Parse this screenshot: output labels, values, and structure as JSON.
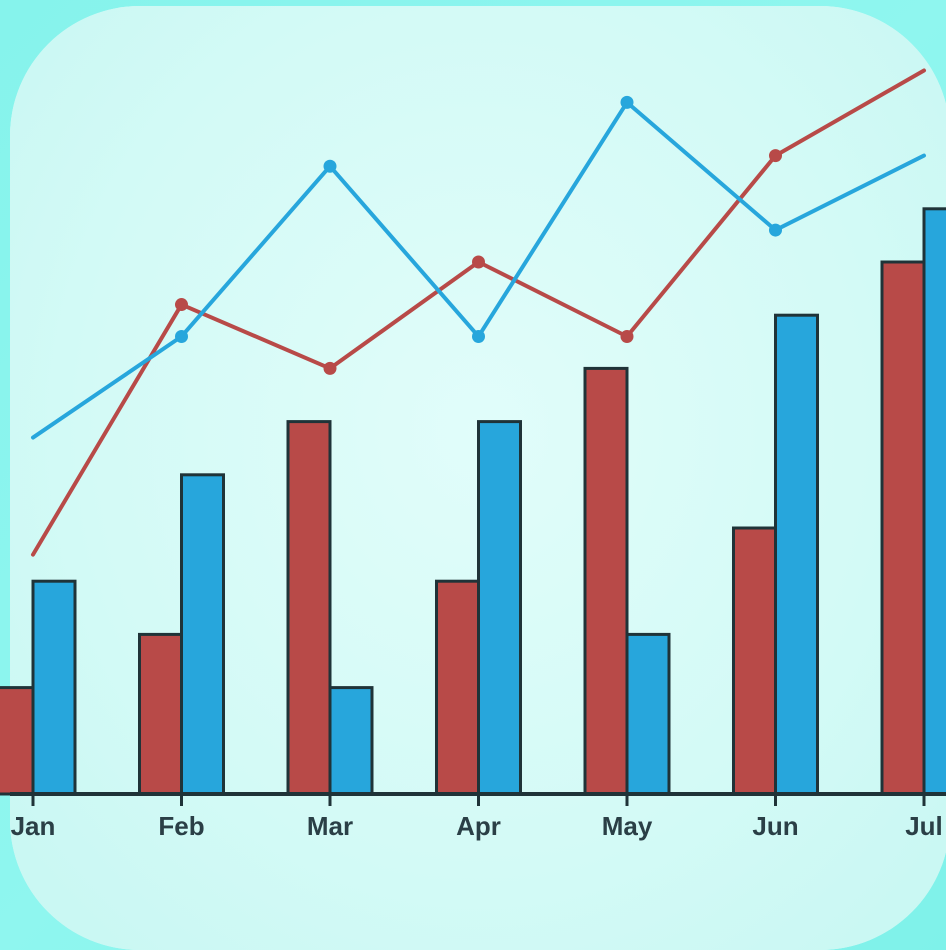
{
  "chart_data": {
    "type": "bar",
    "categories": [
      "Jan",
      "Feb",
      "Mar",
      "Apr",
      "May",
      "Jun",
      "Jul"
    ],
    "series": [
      {
        "values": [
          20,
          30,
          70,
          40,
          80,
          50,
          100
        ],
        "color": "#b84a48"
      },
      {
        "values": [
          40,
          60,
          20,
          70,
          30,
          90,
          110
        ],
        "color": "#27a6dc"
      }
    ],
    "lines": [
      {
        "values": [
          45,
          92,
          80,
          100,
          86,
          120,
          136
        ],
        "color": "#b84a48"
      },
      {
        "values": [
          67,
          86,
          118,
          86,
          130,
          106,
          120
        ],
        "color": "#27a6dc"
      }
    ],
    "ylim": [
      0,
      150
    ],
    "grid": false,
    "legend": "none"
  }
}
